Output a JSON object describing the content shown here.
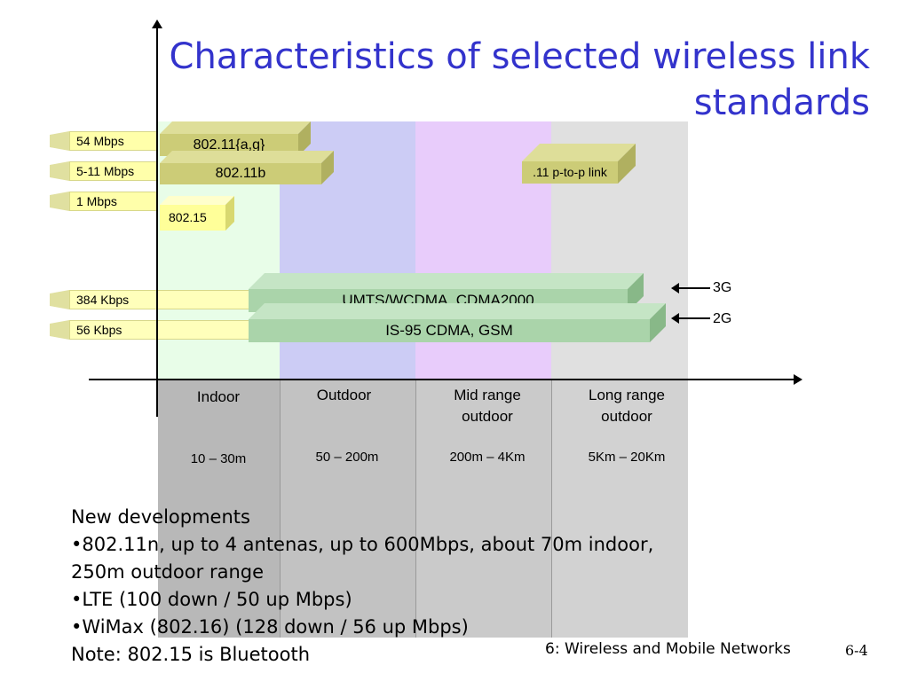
{
  "title": "Characteristics of selected wireless link standards",
  "rates": [
    "54 Mbps",
    "5-11 Mbps",
    "1 Mbps",
    "384 Kbps",
    "56 Kbps"
  ],
  "standards": {
    "s80211ag": "802.11{a,g}",
    "s80211b": "802.11b",
    "s80215": "802.15",
    "p2p": ".11 p-to-p link",
    "umts": "UMTS/WCDMA, CDMA2000",
    "is95": "IS-95 CDMA, GSM"
  },
  "generations": {
    "g3": "3G",
    "g2": "2G"
  },
  "ranges": [
    {
      "label": "Indoor",
      "distance": "10 – 30m"
    },
    {
      "label": "Outdoor",
      "distance": "50 – 200m"
    },
    {
      "label": "Mid range\noutdoor",
      "distance": "200m – 4Km"
    },
    {
      "label": "Long range\noutdoor",
      "distance": "5Km – 20Km"
    }
  ],
  "notes": [
    "New developments",
    "•802.11n, up to 4 antenas, up to 600Mbps, about 70m indoor,",
    "250m outdoor range",
    "•LTE (100 down / 50 up Mbps)",
    "•WiMax (802.16) (128 down / 56 up Mbps)",
    "Note: 802.15 is Bluetooth"
  ],
  "footer": "6: Wireless and Mobile Networks",
  "page_number": "6-4",
  "colors": {
    "indoor": "#e8fde8",
    "outdoor": "#ccccf5",
    "midrange": "#e8ccfb",
    "longrange": "#e0e0e0",
    "lower": "#b8b8b8",
    "wifi_slab": "#cccc77",
    "bt_slab": "#ffff99",
    "cell_slab": "#aad4aa"
  }
}
